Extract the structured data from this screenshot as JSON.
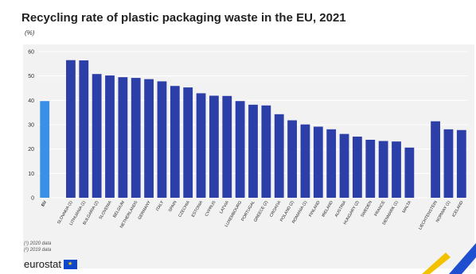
{
  "title": "Recycling rate of plastic packaging waste in the EU, 2021",
  "unit": "(%)",
  "footnotes": [
    "(¹) 2020 data",
    "(²) 2019 data"
  ],
  "brand": "eurostat",
  "colors": {
    "eu": "#3a8fe6",
    "country": "#2c3ea8",
    "panel": "#f2f2f2",
    "grid": "#ffffff",
    "accent_yellow": "#f2c200",
    "accent_blue": "#1f4fd1"
  },
  "chart_data": {
    "type": "bar",
    "title": "Recycling rate of plastic packaging waste in the EU, 2021",
    "ylabel": "(%)",
    "ylim": [
      0,
      60
    ],
    "yticks": [
      0,
      10,
      20,
      30,
      40,
      50,
      60
    ],
    "grid": true,
    "categories": [
      "EU",
      "Slovakia (1)",
      "Lithuania (1)",
      "Bulgaria (2)",
      "Slovenia",
      "Belgium",
      "Netherlands",
      "Germany",
      "Italy",
      "Spain",
      "Czechia",
      "Estonia",
      "Cyprus",
      "Latvia",
      "Luxembourg",
      "Portugal",
      "Greece (2)",
      "Croatia",
      "Poland (2)",
      "Romania (1)",
      "Finland",
      "Ireland",
      "Austria",
      "Hungary (2)",
      "Sweden",
      "France",
      "Denmark (1)",
      "Malta",
      "Liechtenstein",
      "Norway (1)",
      "Iceland"
    ],
    "values": [
      39.7,
      56.5,
      56.4,
      50.8,
      50.2,
      49.5,
      49.2,
      48.7,
      47.8,
      45.9,
      45.3,
      42.9,
      41.9,
      41.8,
      39.7,
      38.2,
      37.9,
      34.3,
      31.8,
      30.1,
      29.2,
      28.1,
      26.2,
      25.1,
      23.8,
      23.3,
      23.1,
      20.6,
      31.4,
      28.1,
      27.8
    ],
    "groups": [
      "eu",
      "country",
      "country",
      "country",
      "country",
      "country",
      "country",
      "country",
      "country",
      "country",
      "country",
      "country",
      "country",
      "country",
      "country",
      "country",
      "country",
      "country",
      "country",
      "country",
      "country",
      "country",
      "country",
      "country",
      "country",
      "country",
      "country",
      "country",
      "country",
      "country",
      "country"
    ]
  }
}
